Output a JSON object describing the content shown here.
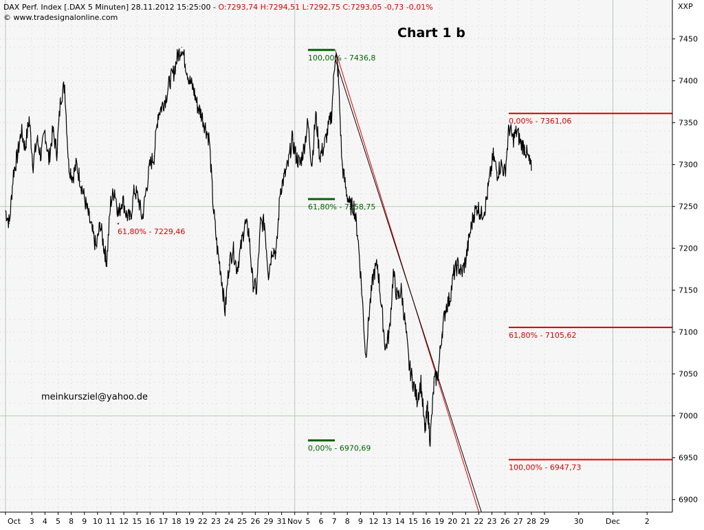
{
  "header": {
    "instrument": "DAX Perf. Index [.DAX  5 Minuten] 28.11.2012 15:25:00 - ",
    "ohlc": "O:7293,74 H:7294,51 L:7292,75 C:7293,05 -0,73 -0,01%",
    "copyright": "© www.tradesignalonline.com",
    "axis_code": "XXP"
  },
  "annotations": {
    "title": "Chart 1 b",
    "email": "meinkursziel@yahoo.de"
  },
  "colors": {
    "price": "#000000",
    "fib_left": "#d40000",
    "fib_mid": "#006400",
    "fib_right": "#d40000",
    "trend_red": "#e00000",
    "trend_black": "#000000",
    "plot_bg": "#f6f6f6",
    "grid_dot": "#cfcfcf",
    "grid_solid": "#b8c8b8"
  },
  "chart_data": {
    "type": "line",
    "title": "Chart 1 b",
    "ylim": [
      6885,
      7485
    ],
    "y_ticks": [
      6900,
      6950,
      7000,
      7050,
      7100,
      7150,
      7200,
      7250,
      7300,
      7350,
      7400,
      7450
    ],
    "grid": true,
    "x_ticks": [
      {
        "i": 0,
        "label": "Oct"
      },
      {
        "i": 2.0,
        "label": "3"
      },
      {
        "i": 3.0,
        "label": "4"
      },
      {
        "i": 4.0,
        "label": "5"
      },
      {
        "i": 5.0,
        "label": "8"
      },
      {
        "i": 6.0,
        "label": "9"
      },
      {
        "i": 7.0,
        "label": "10"
      },
      {
        "i": 8.0,
        "label": "11"
      },
      {
        "i": 9.0,
        "label": "12"
      },
      {
        "i": 10.0,
        "label": "15"
      },
      {
        "i": 11.0,
        "label": "16"
      },
      {
        "i": 12.0,
        "label": "17"
      },
      {
        "i": 13.0,
        "label": "18"
      },
      {
        "i": 14.0,
        "label": "19"
      },
      {
        "i": 15.0,
        "label": "22"
      },
      {
        "i": 16.0,
        "label": "23"
      },
      {
        "i": 17.0,
        "label": "24"
      },
      {
        "i": 18.0,
        "label": "25"
      },
      {
        "i": 19.0,
        "label": "26"
      },
      {
        "i": 20.0,
        "label": "29"
      },
      {
        "i": 21.0,
        "label": "31"
      },
      {
        "i": 22.0,
        "label": "Nov"
      },
      {
        "i": 23.0,
        "label": "5"
      },
      {
        "i": 24.0,
        "label": "6"
      },
      {
        "i": 25.0,
        "label": "7"
      },
      {
        "i": 26.0,
        "label": "8"
      },
      {
        "i": 27.0,
        "label": "9"
      },
      {
        "i": 28.0,
        "label": "12"
      },
      {
        "i": 29.0,
        "label": "13"
      },
      {
        "i": 30.0,
        "label": "14"
      },
      {
        "i": 31.0,
        "label": "15"
      },
      {
        "i": 32.0,
        "label": "16"
      },
      {
        "i": 33.0,
        "label": "19"
      },
      {
        "i": 34.0,
        "label": "20"
      },
      {
        "i": 35.0,
        "label": "21"
      },
      {
        "i": 36.0,
        "label": "22"
      },
      {
        "i": 37.0,
        "label": "23"
      },
      {
        "i": 38.0,
        "label": "26"
      },
      {
        "i": 39.0,
        "label": "27"
      },
      {
        "i": 40.0,
        "label": "28"
      },
      {
        "i": 41.0,
        "label": "29"
      },
      {
        "i": 43.6,
        "label": "30"
      },
      {
        "i": 46.2,
        "label": "Dec"
      },
      {
        "i": 48.8,
        "label": "2"
      }
    ],
    "x_major_lines": [
      0,
      22,
      46.2
    ],
    "y_major_lines": [
      7000,
      7250
    ],
    "series": [
      {
        "values": [
          {
            "i": 0.0,
            "v": 7245
          },
          {
            "i": 0.3,
            "v": 7230
          },
          {
            "i": 0.6,
            "v": 7290
          },
          {
            "i": 0.9,
            "v": 7310
          },
          {
            "i": 1.2,
            "v": 7340
          },
          {
            "i": 1.5,
            "v": 7320
          },
          {
            "i": 1.8,
            "v": 7355
          },
          {
            "i": 2.1,
            "v": 7300
          },
          {
            "i": 2.4,
            "v": 7330
          },
          {
            "i": 2.7,
            "v": 7310
          },
          {
            "i": 3.0,
            "v": 7340
          },
          {
            "i": 3.3,
            "v": 7305
          },
          {
            "i": 3.6,
            "v": 7340
          },
          {
            "i": 3.9,
            "v": 7315
          },
          {
            "i": 4.2,
            "v": 7380
          },
          {
            "i": 4.5,
            "v": 7395
          },
          {
            "i": 4.8,
            "v": 7300
          },
          {
            "i": 5.1,
            "v": 7285
          },
          {
            "i": 5.4,
            "v": 7300
          },
          {
            "i": 5.7,
            "v": 7280
          },
          {
            "i": 6.0,
            "v": 7260
          },
          {
            "i": 6.3,
            "v": 7240
          },
          {
            "i": 6.6,
            "v": 7220
          },
          {
            "i": 6.9,
            "v": 7200
          },
          {
            "i": 7.2,
            "v": 7230
          },
          {
            "i": 7.5,
            "v": 7200
          },
          {
            "i": 7.7,
            "v": 7185
          },
          {
            "i": 8.0,
            "v": 7255
          },
          {
            "i": 8.3,
            "v": 7270
          },
          {
            "i": 8.6,
            "v": 7240
          },
          {
            "i": 8.9,
            "v": 7260
          },
          {
            "i": 9.2,
            "v": 7240
          },
          {
            "i": 9.5,
            "v": 7235
          },
          {
            "i": 9.8,
            "v": 7270
          },
          {
            "i": 10.1,
            "v": 7260
          },
          {
            "i": 10.4,
            "v": 7235
          },
          {
            "i": 10.7,
            "v": 7270
          },
          {
            "i": 11.0,
            "v": 7300
          },
          {
            "i": 11.3,
            "v": 7310
          },
          {
            "i": 11.6,
            "v": 7360
          },
          {
            "i": 11.9,
            "v": 7370
          },
          {
            "i": 12.2,
            "v": 7380
          },
          {
            "i": 12.5,
            "v": 7400
          },
          {
            "i": 12.8,
            "v": 7410
          },
          {
            "i": 13.1,
            "v": 7430
          },
          {
            "i": 13.4,
            "v": 7440
          },
          {
            "i": 13.7,
            "v": 7420
          },
          {
            "i": 14.0,
            "v": 7400
          },
          {
            "i": 14.3,
            "v": 7390
          },
          {
            "i": 14.6,
            "v": 7370
          },
          {
            "i": 14.9,
            "v": 7360
          },
          {
            "i": 15.2,
            "v": 7345
          },
          {
            "i": 15.5,
            "v": 7330
          },
          {
            "i": 15.8,
            "v": 7250
          },
          {
            "i": 16.1,
            "v": 7200
          },
          {
            "i": 16.4,
            "v": 7170
          },
          {
            "i": 16.7,
            "v": 7125
          },
          {
            "i": 17.0,
            "v": 7180
          },
          {
            "i": 17.3,
            "v": 7200
          },
          {
            "i": 17.6,
            "v": 7175
          },
          {
            "i": 17.9,
            "v": 7200
          },
          {
            "i": 18.2,
            "v": 7230
          },
          {
            "i": 18.5,
            "v": 7220
          },
          {
            "i": 18.8,
            "v": 7160
          },
          {
            "i": 19.1,
            "v": 7150
          },
          {
            "i": 19.4,
            "v": 7230
          },
          {
            "i": 19.7,
            "v": 7230
          },
          {
            "i": 20.0,
            "v": 7170
          },
          {
            "i": 20.3,
            "v": 7200
          },
          {
            "i": 20.6,
            "v": 7195
          },
          {
            "i": 20.9,
            "v": 7270
          },
          {
            "i": 21.2,
            "v": 7285
          },
          {
            "i": 21.5,
            "v": 7300
          },
          {
            "i": 21.8,
            "v": 7330
          },
          {
            "i": 22.1,
            "v": 7310
          },
          {
            "i": 22.4,
            "v": 7300
          },
          {
            "i": 22.7,
            "v": 7320
          },
          {
            "i": 23.0,
            "v": 7350
          },
          {
            "i": 23.3,
            "v": 7300
          },
          {
            "i": 23.6,
            "v": 7360
          },
          {
            "i": 23.9,
            "v": 7310
          },
          {
            "i": 24.2,
            "v": 7320
          },
          {
            "i": 24.5,
            "v": 7340
          },
          {
            "i": 24.8,
            "v": 7360
          },
          {
            "i": 25.1,
            "v": 7436.8
          },
          {
            "i": 25.3,
            "v": 7410
          },
          {
            "i": 25.6,
            "v": 7300
          },
          {
            "i": 25.9,
            "v": 7270
          },
          {
            "i": 26.2,
            "v": 7250
          },
          {
            "i": 26.5,
            "v": 7250
          },
          {
            "i": 26.8,
            "v": 7215
          },
          {
            "i": 27.1,
            "v": 7150
          },
          {
            "i": 27.4,
            "v": 7070
          },
          {
            "i": 27.7,
            "v": 7130
          },
          {
            "i": 28.0,
            "v": 7170
          },
          {
            "i": 28.3,
            "v": 7180
          },
          {
            "i": 28.6,
            "v": 7130
          },
          {
            "i": 28.9,
            "v": 7080
          },
          {
            "i": 29.2,
            "v": 7100
          },
          {
            "i": 29.5,
            "v": 7170
          },
          {
            "i": 29.8,
            "v": 7140
          },
          {
            "i": 30.1,
            "v": 7150
          },
          {
            "i": 30.4,
            "v": 7110
          },
          {
            "i": 30.7,
            "v": 7060
          },
          {
            "i": 31.0,
            "v": 7040
          },
          {
            "i": 31.3,
            "v": 7020
          },
          {
            "i": 31.6,
            "v": 7040
          },
          {
            "i": 31.9,
            "v": 6980
          },
          {
            "i": 32.1,
            "v": 7010
          },
          {
            "i": 32.3,
            "v": 6970.69
          },
          {
            "i": 32.6,
            "v": 7040
          },
          {
            "i": 32.9,
            "v": 7050
          },
          {
            "i": 33.2,
            "v": 7100
          },
          {
            "i": 33.5,
            "v": 7130
          },
          {
            "i": 33.8,
            "v": 7140
          },
          {
            "i": 34.1,
            "v": 7170
          },
          {
            "i": 34.4,
            "v": 7180
          },
          {
            "i": 34.7,
            "v": 7170
          },
          {
            "i": 35.0,
            "v": 7185
          },
          {
            "i": 35.3,
            "v": 7215
          },
          {
            "i": 35.6,
            "v": 7240
          },
          {
            "i": 35.9,
            "v": 7250
          },
          {
            "i": 36.2,
            "v": 7240
          },
          {
            "i": 36.5,
            "v": 7250
          },
          {
            "i": 36.8,
            "v": 7280
          },
          {
            "i": 37.1,
            "v": 7310
          },
          {
            "i": 37.4,
            "v": 7290
          },
          {
            "i": 37.7,
            "v": 7300
          },
          {
            "i": 38.0,
            "v": 7290
          },
          {
            "i": 38.3,
            "v": 7345
          },
          {
            "i": 38.6,
            "v": 7330
          },
          {
            "i": 38.9,
            "v": 7340
          },
          {
            "i": 39.2,
            "v": 7325
          },
          {
            "i": 39.5,
            "v": 7320
          },
          {
            "i": 39.8,
            "v": 7305
          },
          {
            "i": 40.0,
            "v": 7293
          }
        ]
      }
    ],
    "fib_levels": [
      {
        "id": "left-618",
        "label": "61,80% - 7229,46",
        "value": 7229.46,
        "group": "left"
      },
      {
        "id": "mid-100",
        "label": "100,00% - 7436,8",
        "value": 7436.8,
        "group": "mid"
      },
      {
        "id": "mid-618",
        "label": "61,80% - 7258,75",
        "value": 7258.75,
        "group": "mid"
      },
      {
        "id": "mid-0",
        "label": "0,00% - 6970,69",
        "value": 6970.69,
        "group": "mid"
      },
      {
        "id": "right-0",
        "label": "0,00% - 7361,06",
        "value": 7361.06,
        "group": "right"
      },
      {
        "id": "right-618",
        "label": "61,80% - 7105,62",
        "value": 7105.62,
        "group": "right"
      },
      {
        "id": "right-100",
        "label": "100,00% - 6947,73",
        "value": 6947.73,
        "group": "right"
      }
    ],
    "trendlines": [
      {
        "id": "trend-red",
        "color_key": "trend_red",
        "from": {
          "i": 25.1,
          "v": 7436
        },
        "to": {
          "i": 36.0,
          "v": 6885
        }
      },
      {
        "id": "trend-black",
        "color_key": "trend_black",
        "from": {
          "i": 25.1,
          "v": 7425
        },
        "to": {
          "i": 36.2,
          "v": 6885
        }
      }
    ]
  }
}
